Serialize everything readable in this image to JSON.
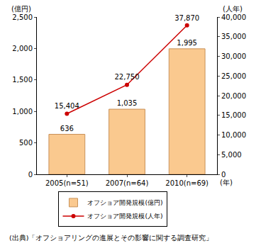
{
  "chart_data": {
    "type": "bar",
    "categories": [
      "2005(n=51)",
      "2007(n=64)",
      "2010(n=69)"
    ],
    "x_label": "(年)",
    "y_label": "(億円)",
    "y2_label": "(人年)",
    "source": "(出典)「オフショアリングの進展とその影響に関する調査研究」",
    "ylim": [
      0,
      2500
    ],
    "yticks": [
      0,
      500,
      {
        "value": 1000,
        "label": "1,000"
      },
      {
        "value": 1500,
        "label": "1,500"
      },
      {
        "value": 2000,
        "label": "2,000"
      },
      {
        "value": 2500,
        "label": "2,500"
      }
    ],
    "y2lim": [
      0,
      40000
    ],
    "y2ticks": [
      0,
      {
        "value": 5000,
        "label": "5,000"
      },
      {
        "value": 10000,
        "label": "10,000"
      },
      {
        "value": 15000,
        "label": "15,000"
      },
      {
        "value": 20000,
        "label": "20,000"
      },
      {
        "value": 25000,
        "label": "25,000"
      },
      {
        "value": 30000,
        "label": "30,000"
      },
      {
        "value": 35000,
        "label": "35,000"
      },
      {
        "value": 40000,
        "label": "40,000"
      }
    ],
    "grid": false,
    "data_labels": true,
    "legend": "bottom",
    "series": [
      {
        "name": "オフショア開発規模(億円)",
        "type": "bar",
        "color": "#fac98f",
        "values": [
          636,
          1035,
          1995
        ],
        "value_labels": [
          "636",
          "1,035",
          "1,995"
        ]
      },
      {
        "name": "オフショア開発規模(人年)",
        "type": "line",
        "axis": "y2",
        "color": "#cc0000",
        "marker": "circle",
        "values": [
          15404,
          22750,
          37870
        ],
        "value_labels": [
          "15,404",
          "22,750",
          "37,870"
        ]
      }
    ]
  }
}
